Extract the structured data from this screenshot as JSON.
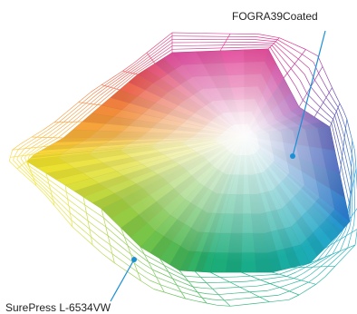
{
  "labels": {
    "inner_gamut": "FOGRA39Coated",
    "outer_gamut": "SurePress L-6534VW"
  },
  "colors": {
    "callout_line": "#1a8fd6",
    "callout_dot": "#1a8fd6",
    "label_text": "#222222"
  }
}
